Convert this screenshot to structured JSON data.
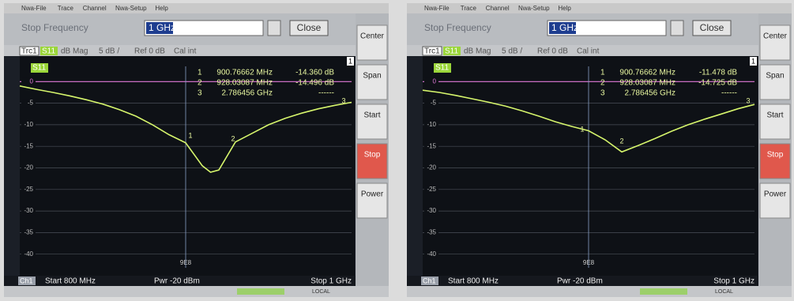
{
  "screens": [
    {
      "menu": [
        "Nwa-File",
        "Trace",
        "Channel",
        "Nwa-Setup",
        "Help"
      ],
      "field_label": "Stop Frequency",
      "field_value": "1 GHz",
      "close": "Close",
      "trace_bar": {
        "trace": "Trc1",
        "param": "S11",
        "format": "dB Mag",
        "scale": "5 dB /",
        "ref": "Ref 0 dB",
        "cal": "Cal int",
        "channel": "1"
      },
      "chart": {
        "type": "line",
        "x": [
          800,
          810,
          820,
          830,
          840,
          850,
          860,
          870,
          880,
          890,
          900,
          910,
          915,
          920,
          930,
          940,
          950,
          960,
          970,
          980,
          990,
          1000
        ],
        "series": [
          {
            "name": "S11",
            "color": "#d6f56c",
            "values": [
              -1,
              -1.8,
              -2.5,
              -3.3,
              -4.2,
              -5.2,
              -6.5,
              -8,
              -10,
              -12.3,
              -14.2,
              -19.5,
              -21,
              -20.5,
              -14,
              -12,
              -10,
              -8.5,
              -7.3,
              -6.3,
              -5.5,
              -4.8
            ]
          }
        ],
        "xlim": [
          800,
          1000
        ],
        "ylim": [
          -45,
          5
        ],
        "yticks": [
          0,
          -5,
          -10,
          -15,
          -20,
          -25,
          -30,
          -35,
          -40
        ],
        "cursor": {
          "value": 900,
          "label": "9E8"
        },
        "grid": true
      },
      "markers": [
        {
          "number": 1,
          "freq": "900.76662 MHz",
          "value": "-14.360 dB"
        },
        {
          "number": 2,
          "freq": "928.03087 MHz",
          "value": "-14.496 dB"
        },
        {
          "number": 3,
          "freq": "2.786456 GHz",
          "value": "------"
        }
      ],
      "softkeys": [
        "Center",
        "Span",
        "Start",
        "Stop",
        "Power"
      ],
      "active_softkey": 3,
      "footer": {
        "channel": "Ch1",
        "start": "Start 800 MHz",
        "power": "Pwr -20 dBm",
        "stop": "Stop 1 GHz"
      },
      "status": "LOCAL"
    },
    {
      "menu": [
        "Nwa-File",
        "Trace",
        "Channel",
        "Nwa-Setup",
        "Help"
      ],
      "field_label": "Stop Frequency",
      "field_value": "1 GHz",
      "close": "Close",
      "trace_bar": {
        "trace": "Trc1",
        "param": "S11",
        "format": "dB Mag",
        "scale": "5 dB /",
        "ref": "Ref 0 dB",
        "cal": "Cal int",
        "channel": "1"
      },
      "chart": {
        "type": "line",
        "x": [
          800,
          810,
          820,
          830,
          840,
          850,
          860,
          870,
          880,
          890,
          900,
          910,
          920,
          930,
          940,
          950,
          960,
          970,
          980,
          990,
          1000
        ],
        "series": [
          {
            "name": "S11",
            "color": "#d6f56c",
            "values": [
              -2,
              -2.5,
              -3.2,
              -4,
              -4.8,
              -5.7,
              -6.8,
              -8,
              -9.3,
              -10.4,
              -11.4,
              -13.5,
              -16.3,
              -14.8,
              -13.2,
              -11.5,
              -10,
              -8.7,
              -7.5,
              -6.3,
              -5.3
            ]
          }
        ],
        "xlim": [
          800,
          1000
        ],
        "ylim": [
          -45,
          5
        ],
        "yticks": [
          0,
          -5,
          -10,
          -15,
          -20,
          -25,
          -30,
          -35,
          -40
        ],
        "cursor": {
          "value": 900,
          "label": "9E8"
        },
        "grid": true
      },
      "markers": [
        {
          "number": 1,
          "freq": "900.76662 MHz",
          "value": "-11.478 dB"
        },
        {
          "number": 2,
          "freq": "928.03087 MHz",
          "value": "-14.725 dB"
        },
        {
          "number": 3,
          "freq": "2.786456 GHz",
          "value": "------"
        }
      ],
      "softkeys": [
        "Center",
        "Span",
        "Start",
        "Stop",
        "Power"
      ],
      "active_softkey": 3,
      "footer": {
        "channel": "Ch1",
        "start": "Start 800 MHz",
        "power": "Pwr -20 dBm",
        "stop": "Stop 1 GHz"
      },
      "status": "LOCAL"
    }
  ]
}
